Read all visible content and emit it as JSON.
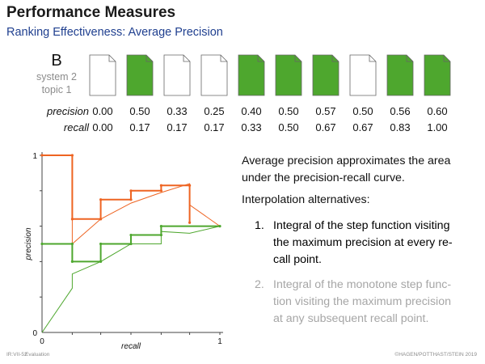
{
  "header": {
    "title": "Performance Measures",
    "subtitle": "Ranking Effectiveness: Average Precision"
  },
  "system": {
    "label": "B",
    "sub1": "system 2",
    "sub2": "topic 1"
  },
  "documents": {
    "relevant": [
      false,
      true,
      false,
      false,
      true,
      true,
      true,
      false,
      true,
      true
    ],
    "relevant_color": "#4ea72e",
    "nonrelevant_color": "#ffffff"
  },
  "table": {
    "precision_label": "precision",
    "recall_label": "recall",
    "precision": [
      "0.00",
      "0.50",
      "0.33",
      "0.25",
      "0.40",
      "0.50",
      "0.57",
      "0.50",
      "0.56",
      "0.60"
    ],
    "recall": [
      "0.00",
      "0.17",
      "0.17",
      "0.17",
      "0.33",
      "0.50",
      "0.67",
      "0.67",
      "0.83",
      "1.00"
    ]
  },
  "chart_data": {
    "type": "line",
    "xlabel": "recall",
    "ylabel": "precision",
    "xlim": [
      0,
      1
    ],
    "ylim": [
      0,
      1
    ],
    "x_ticks": [
      "0",
      "1"
    ],
    "y_ticks": [
      "0",
      "1"
    ],
    "series": [
      {
        "color": "#ee6422",
        "style": "step",
        "points": [
          [
            0,
            1
          ],
          [
            0.17,
            1
          ],
          [
            0.17,
            0.64
          ],
          [
            0.33,
            0.64
          ],
          [
            0.33,
            0.75
          ],
          [
            0.5,
            0.75
          ],
          [
            0.5,
            0.8
          ],
          [
            0.67,
            0.8
          ],
          [
            0.67,
            0.83
          ],
          [
            0.83,
            0.83
          ],
          [
            0.83,
            0.62
          ]
        ]
      },
      {
        "color": "#ee6422",
        "style": "line",
        "points": [
          [
            0,
            1
          ],
          [
            0.17,
            1
          ],
          [
            0.17,
            0.5
          ],
          [
            0.33,
            0.64
          ],
          [
            0.5,
            0.73
          ],
          [
            0.67,
            0.79
          ],
          [
            0.83,
            0.84
          ],
          [
            0.83,
            0.72
          ],
          [
            1,
            0.6
          ]
        ]
      },
      {
        "color": "#4ea72e",
        "style": "step",
        "points": [
          [
            0,
            0.5
          ],
          [
            0.17,
            0.5
          ],
          [
            0.17,
            0.4
          ],
          [
            0.33,
            0.4
          ],
          [
            0.33,
            0.5
          ],
          [
            0.5,
            0.5
          ],
          [
            0.5,
            0.55
          ],
          [
            0.67,
            0.55
          ],
          [
            0.67,
            0.6
          ],
          [
            1,
            0.6
          ]
        ]
      },
      {
        "color": "#4ea72e",
        "style": "line",
        "points": [
          [
            0,
            0
          ],
          [
            0.17,
            0.25
          ],
          [
            0.17,
            0.33
          ],
          [
            0.33,
            0.4
          ],
          [
            0.5,
            0.5
          ],
          [
            0.67,
            0.5
          ],
          [
            0.67,
            0.57
          ],
          [
            0.83,
            0.56
          ],
          [
            1,
            0.6
          ]
        ]
      }
    ]
  },
  "text": {
    "p1_line1": "Average precision approximates the area",
    "p1_line2": "under the precision-recall curve.",
    "p2": "Interpolation alternatives:",
    "item1_num": "1.",
    "item1_line1": "Integral of the step function visiting",
    "item1_line2": "the maximum precision at every re-",
    "item1_line3": "call point.",
    "item2_num": "2.",
    "item2_line1": "Integral of the monotone step func-",
    "item2_line2": "tion visiting the maximum precision",
    "item2_line3": "at any subsequent recall point."
  },
  "footer": {
    "left1": "IR:VII-52",
    "left2": "Evaluation",
    "right": "©HAGEN/POTTHAST/STEIN 2019"
  }
}
